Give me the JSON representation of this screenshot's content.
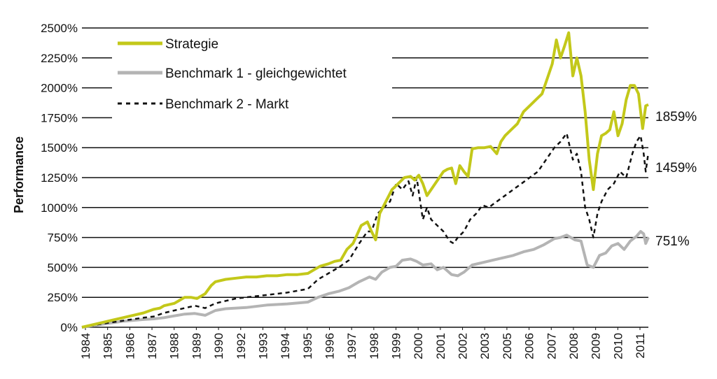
{
  "chart_data": {
    "type": "line",
    "title": "",
    "xlabel": "",
    "ylabel": "Performance",
    "ylim": [
      0,
      2500
    ],
    "xlim": [
      1984.0,
      2011.58
    ],
    "grid": "horizontal",
    "legend_position": "top-left",
    "y_ticks": [
      0,
      250,
      500,
      750,
      1000,
      1250,
      1500,
      1750,
      2000,
      2250,
      2500
    ],
    "y_tick_labels": [
      "0%",
      "250%",
      "500%",
      "750%",
      "1000%",
      "1250%",
      "1500%",
      "1750%",
      "2000%",
      "2250%",
      "2500%"
    ],
    "x_tick_labels": [
      "1984",
      "1985",
      "1986",
      "1987",
      "1988",
      "1989",
      "1990",
      "1992",
      "1993",
      "1994",
      "1995",
      "1996",
      "1997",
      "1998",
      "1999",
      "2000",
      "2001",
      "2002",
      "2003",
      "2005",
      "2006",
      "2007",
      "2008",
      "2009",
      "2010",
      "2011"
    ],
    "series": [
      {
        "name": "Strategie",
        "color": "#c3c81a",
        "style": "solid",
        "end_label": "1859%",
        "x": [
          1984.0,
          1984.5,
          1985.0,
          1985.5,
          1986.0,
          1986.5,
          1987.0,
          1987.5,
          1987.8,
          1988.0,
          1988.5,
          1989.0,
          1989.3,
          1989.6,
          1990.0,
          1990.3,
          1990.5,
          1991.0,
          1991.5,
          1992.0,
          1992.5,
          1993.0,
          1993.5,
          1994.0,
          1994.5,
          1995.0,
          1995.3,
          1995.6,
          1996.0,
          1996.3,
          1996.6,
          1996.9,
          1997.2,
          1997.6,
          1997.9,
          1998.1,
          1998.3,
          1998.5,
          1998.8,
          1999.1,
          1999.4,
          1999.7,
          2000.0,
          2000.2,
          2000.4,
          2000.6,
          2000.8,
          2001.0,
          2001.2,
          2001.4,
          2001.6,
          2001.8,
          2002.0,
          2002.2,
          2002.4,
          2002.6,
          2002.8,
          2003.0,
          2003.3,
          2003.6,
          2003.9,
          2004.2,
          2004.4,
          2004.6,
          2004.9,
          2005.2,
          2005.5,
          2005.8,
          2006.1,
          2006.4,
          2006.7,
          2006.9,
          2007.1,
          2007.3,
          2007.5,
          2007.7,
          2007.9,
          2008.1,
          2008.3,
          2008.5,
          2008.7,
          2008.9,
          2009.1,
          2009.3,
          2009.5,
          2009.7,
          2009.9,
          2010.1,
          2010.3,
          2010.5,
          2010.7,
          2010.9,
          2011.1,
          2011.3,
          2011.45,
          2011.58
        ],
        "values": [
          0,
          20,
          40,
          60,
          80,
          100,
          120,
          150,
          160,
          180,
          200,
          250,
          250,
          240,
          280,
          350,
          380,
          400,
          410,
          420,
          420,
          430,
          430,
          440,
          440,
          450,
          480,
          510,
          530,
          550,
          560,
          650,
          700,
          850,
          880,
          800,
          730,
          950,
          1050,
          1150,
          1200,
          1250,
          1260,
          1230,
          1270,
          1200,
          1100,
          1150,
          1200,
          1250,
          1300,
          1320,
          1330,
          1200,
          1350,
          1300,
          1260,
          1490,
          1500,
          1500,
          1510,
          1450,
          1550,
          1600,
          1650,
          1700,
          1800,
          1850,
          1900,
          1950,
          2100,
          2200,
          2400,
          2250,
          2350,
          2460,
          2100,
          2250,
          2100,
          1800,
          1400,
          1150,
          1450,
          1600,
          1620,
          1650,
          1800,
          1600,
          1700,
          1900,
          2020,
          2020,
          1950,
          1660,
          1850,
          1859
        ]
      },
      {
        "name": "Benchmark 1 - gleichgewichtet",
        "color": "#b4b4b4",
        "style": "solid",
        "end_label": "751%",
        "x": [
          1984.0,
          1985.0,
          1986.0,
          1987.0,
          1987.5,
          1988.0,
          1988.5,
          1989.0,
          1989.5,
          1990.0,
          1990.5,
          1991.0,
          1992.0,
          1993.0,
          1994.0,
          1995.0,
          1995.5,
          1996.0,
          1996.5,
          1997.0,
          1997.5,
          1998.0,
          1998.3,
          1998.6,
          1999.0,
          1999.3,
          1999.6,
          2000.0,
          2000.3,
          2000.6,
          2001.0,
          2001.3,
          2001.6,
          2002.0,
          2002.3,
          2002.6,
          2003.0,
          2003.5,
          2004.0,
          2004.5,
          2005.0,
          2005.5,
          2006.0,
          2006.5,
          2007.0,
          2007.3,
          2007.6,
          2008.0,
          2008.3,
          2008.6,
          2008.9,
          2009.2,
          2009.5,
          2009.8,
          2010.1,
          2010.4,
          2010.7,
          2011.0,
          2011.2,
          2011.35,
          2011.45,
          2011.58
        ],
        "values": [
          0,
          25,
          50,
          65,
          70,
          80,
          95,
          110,
          115,
          100,
          140,
          155,
          165,
          185,
          195,
          210,
          250,
          280,
          300,
          330,
          380,
          420,
          400,
          460,
          500,
          510,
          560,
          570,
          550,
          520,
          530,
          480,
          500,
          440,
          430,
          460,
          520,
          540,
          560,
          580,
          600,
          630,
          650,
          690,
          740,
          750,
          770,
          730,
          720,
          520,
          500,
          600,
          620,
          680,
          700,
          650,
          720,
          760,
          800,
          780,
          700,
          751
        ]
      },
      {
        "name": "Benchmark 2 - Markt",
        "color": "#111111",
        "style": "dashed",
        "end_label": "1459%",
        "x": [
          1984.0,
          1985.0,
          1986.0,
          1987.0,
          1987.5,
          1988.0,
          1988.5,
          1989.0,
          1989.5,
          1990.0,
          1990.5,
          1991.0,
          1991.5,
          1992.0,
          1993.0,
          1994.0,
          1995.0,
          1995.5,
          1996.0,
          1996.5,
          1997.0,
          1997.5,
          1997.9,
          1998.1,
          1998.4,
          1998.7,
          1999.0,
          1999.3,
          1999.6,
          1999.9,
          2000.1,
          2000.3,
          2000.6,
          2000.8,
          2001.0,
          2001.3,
          2001.6,
          2001.9,
          2002.1,
          2002.3,
          2002.6,
          2002.9,
          2003.2,
          2003.5,
          2003.8,
          2004.2,
          2004.6,
          2005.0,
          2005.4,
          2005.8,
          2006.2,
          2006.6,
          2007.0,
          2007.3,
          2007.6,
          2007.9,
          2008.1,
          2008.3,
          2008.5,
          2008.7,
          2008.9,
          2009.1,
          2009.3,
          2009.6,
          2009.9,
          2010.2,
          2010.5,
          2010.8,
          2011.0,
          2011.2,
          2011.35,
          2011.45,
          2011.58
        ],
        "values": [
          0,
          30,
          55,
          80,
          90,
          120,
          140,
          160,
          180,
          160,
          200,
          220,
          240,
          250,
          270,
          290,
          320,
          400,
          450,
          500,
          560,
          700,
          800,
          800,
          950,
          1000,
          1050,
          1200,
          1150,
          1220,
          1100,
          1250,
          900,
          1000,
          900,
          850,
          800,
          720,
          700,
          750,
          800,
          900,
          950,
          1020,
          1000,
          1050,
          1100,
          1150,
          1200,
          1250,
          1300,
          1400,
          1500,
          1550,
          1620,
          1400,
          1450,
          1300,
          1000,
          900,
          750,
          950,
          1050,
          1150,
          1200,
          1300,
          1250,
          1450,
          1550,
          1600,
          1450,
          1300,
          1459
        ]
      }
    ]
  }
}
